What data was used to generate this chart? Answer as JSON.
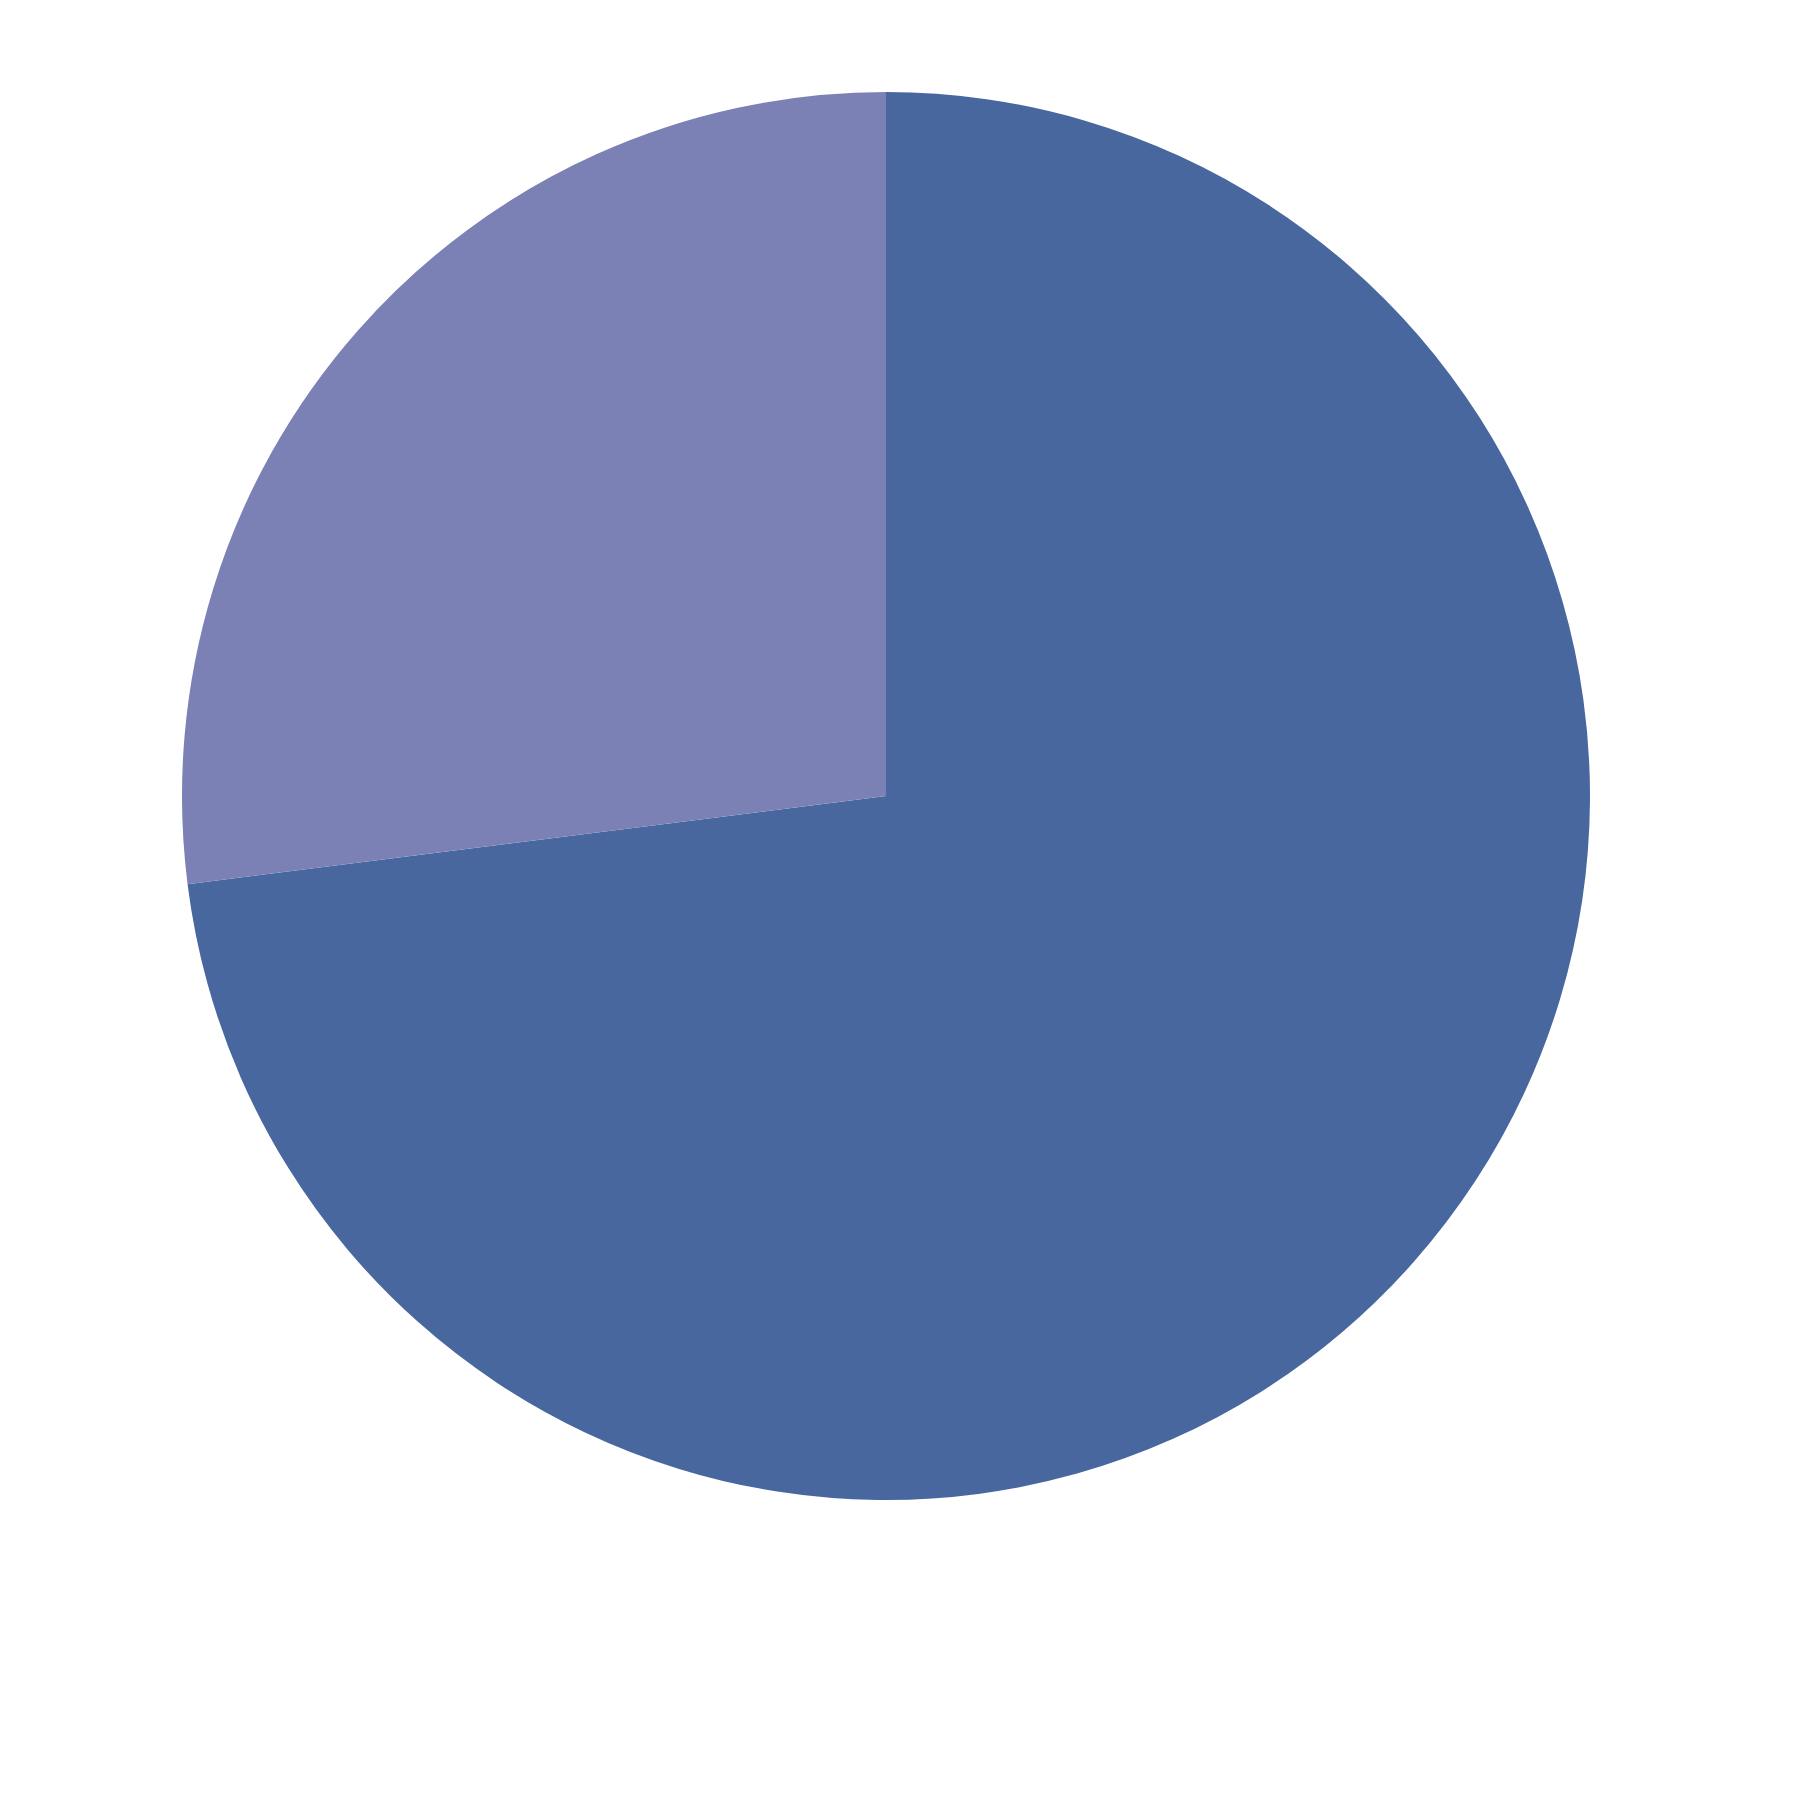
{
  "chart_data": {
    "type": "pie",
    "categories": [
      null,
      null
    ],
    "values": [
      73,
      27
    ],
    "colors": [
      "#47679e",
      "#7b81b5"
    ],
    "legend": false
  }
}
